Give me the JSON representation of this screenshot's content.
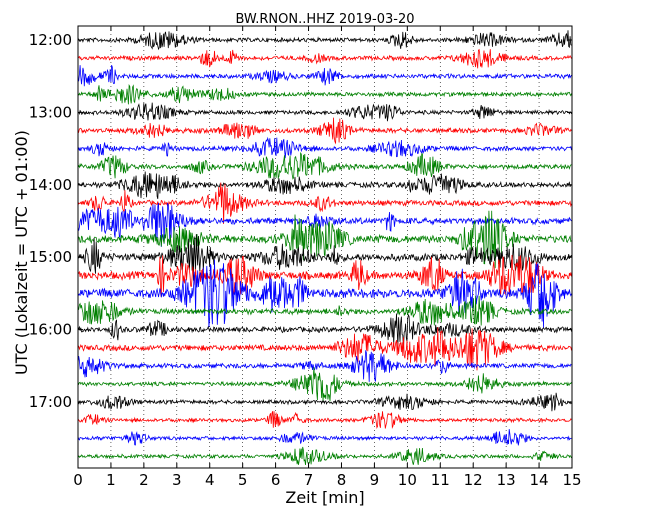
{
  "chart_data": {
    "type": "line",
    "title": "BW.RNON..HHZ 2019-03-20",
    "xlabel": "Zeit  [min]",
    "ylabel": "UTC (Lokalzeit = UTC + 01:00)",
    "xlim": [
      0,
      15
    ],
    "x_ticks": [
      "0",
      "1",
      "2",
      "3",
      "4",
      "5",
      "6",
      "7",
      "8",
      "9",
      "10",
      "11",
      "12",
      "13",
      "14",
      "15"
    ],
    "y_tick_labels": [
      "12:00",
      "13:00",
      "14:00",
      "15:00",
      "16:00",
      "17:00"
    ],
    "grid": "vertical-dotted",
    "trace_colors": [
      "#000000",
      "#ff0000",
      "#0000ff",
      "#008000"
    ],
    "traces": [
      {
        "start": "12:00",
        "level": 0.35
      },
      {
        "start": "12:15",
        "level": 0.35
      },
      {
        "start": "12:30",
        "level": 0.4
      },
      {
        "start": "12:45",
        "level": 0.35
      },
      {
        "start": "13:00",
        "level": 0.3
      },
      {
        "start": "13:15",
        "level": 0.45
      },
      {
        "start": "13:30",
        "level": 0.4
      },
      {
        "start": "13:45",
        "level": 0.45
      },
      {
        "start": "14:00",
        "level": 0.55
      },
      {
        "start": "14:15",
        "level": 0.55
      },
      {
        "start": "14:30",
        "level": 0.75
      },
      {
        "start": "14:45",
        "level": 0.95
      },
      {
        "start": "15:00",
        "level": 0.9
      },
      {
        "start": "15:15",
        "level": 1.0
      },
      {
        "start": "15:30",
        "level": 1.2
      },
      {
        "start": "15:45",
        "level": 0.6
      },
      {
        "start": "16:00",
        "level": 0.55
      },
      {
        "start": "16:15",
        "level": 0.65
      },
      {
        "start": "16:30",
        "level": 0.45
      },
      {
        "start": "16:45",
        "level": 0.3
      },
      {
        "start": "17:00",
        "level": 0.3
      },
      {
        "start": "17:15",
        "level": 0.25
      },
      {
        "start": "17:30",
        "level": 0.25
      },
      {
        "start": "17:45",
        "level": 0.25
      }
    ]
  }
}
